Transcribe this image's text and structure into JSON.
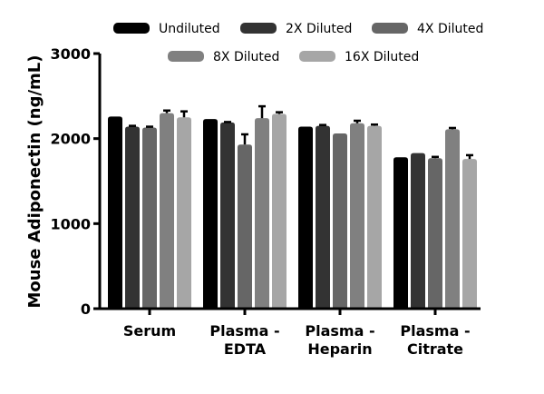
{
  "chart_data": {
    "type": "bar",
    "title": "",
    "xlabel": "",
    "ylabel": "Mouse Adiponectin (ng/mL)",
    "ylim": [
      0,
      3000
    ],
    "yticks": [
      "0",
      "1000",
      "2000",
      "3000"
    ],
    "categories": [
      [
        "Serum"
      ],
      [
        "Plasma -",
        "EDTA"
      ],
      [
        "Plasma -",
        "Heparin"
      ],
      [
        "Plasma -",
        "Citrate"
      ]
    ],
    "legend_position": "top",
    "grid": false,
    "series": [
      {
        "name": "Undiluted",
        "color": "#000000",
        "values": [
          2260,
          2230,
          2140,
          1780
        ],
        "errors": [
          0,
          0,
          0,
          0
        ]
      },
      {
        "name": "2X Diluted",
        "color": "#333333",
        "values": [
          2140,
          2190,
          2150,
          1830
        ],
        "errors": [
          10,
          5,
          10,
          0
        ]
      },
      {
        "name": "4X Diluted",
        "color": "#666666",
        "values": [
          2130,
          1930,
          2060,
          1770
        ],
        "errors": [
          10,
          120,
          0,
          15
        ]
      },
      {
        "name": "8X Diluted",
        "color": "#808080",
        "values": [
          2300,
          2240,
          2180,
          2110
        ],
        "errors": [
          30,
          140,
          30,
          15
        ]
      },
      {
        "name": "16X Diluted",
        "color": "#a6a6a6",
        "values": [
          2250,
          2290,
          2150,
          1760
        ],
        "errors": [
          70,
          20,
          15,
          45
        ]
      }
    ]
  }
}
